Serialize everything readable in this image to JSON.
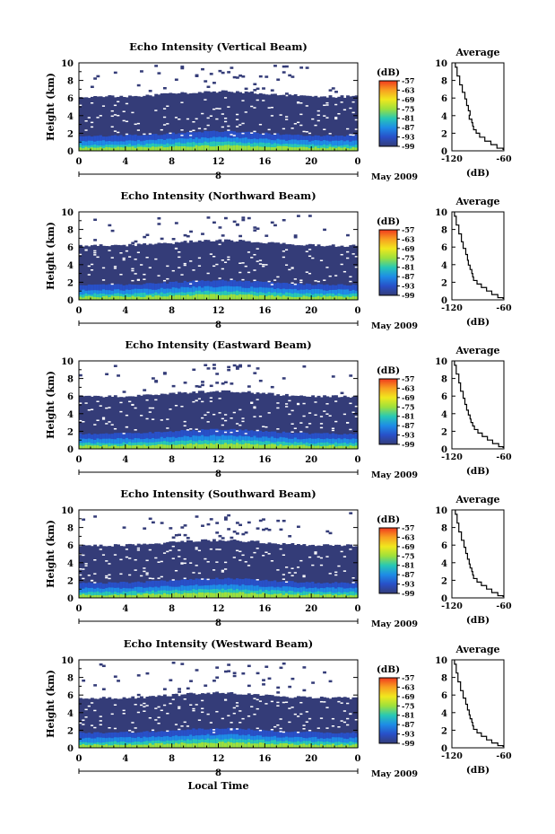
{
  "figure": {
    "x_title": "Local Time",
    "date_label": "May 2009",
    "colorbar_unit": "(dB)",
    "colorbar_ticks": [
      "-57",
      "-63",
      "-69",
      "-75",
      "-81",
      "-87",
      "-93",
      "-99"
    ],
    "profile_title": "Average",
    "profile_xlabel": "(dB)",
    "y_label": "Height (km)"
  },
  "chart_data": [
    {
      "type": "heatmap",
      "title": "Echo Intensity (Vertical Beam)",
      "xlabel": "",
      "ylabel": "Height (km)",
      "x_ticks": [
        "0",
        "4",
        "8",
        "12",
        "16",
        "20",
        "0"
      ],
      "day_label": "8",
      "date_label": "May 2009",
      "xlim": [
        0,
        24
      ],
      "ylim": [
        0,
        10
      ],
      "y_ticks": [
        "0",
        "2",
        "4",
        "6",
        "8",
        "10"
      ],
      "colorbar_unit": "(dB)",
      "colorbar_range": [
        -99,
        -57
      ],
      "colorbar_ticks": [
        -57,
        -63,
        -69,
        -75,
        -81,
        -87,
        -93,
        -99
      ],
      "colorbar_colors": [
        "#f03a1e",
        "#f8a020",
        "#f0e81e",
        "#9de03c",
        "#28c8b4",
        "#1e8ce6",
        "#2850c8",
        "#343c78"
      ],
      "echo_top_km": 6.3,
      "profile": {
        "title": "Average",
        "xlabel": "(dB)",
        "x_ticks": [
          "-120",
          "-60"
        ],
        "y_ticks": [
          "0",
          "2",
          "4",
          "6",
          "8",
          "10"
        ],
        "xlim": [
          -120,
          -60
        ],
        "ylim": [
          0,
          10
        ],
        "x": [
          -116,
          -114,
          -111,
          -108,
          -105,
          -103,
          -101,
          -99,
          -100,
          -97,
          -96,
          -95,
          -92,
          -88,
          -82,
          -75,
          -68,
          -61
        ],
        "y": [
          10,
          9,
          8,
          7,
          6.3,
          5.5,
          4.8,
          4.3,
          3.8,
          3.4,
          3.0,
          2.6,
          2.2,
          1.8,
          1.3,
          0.9,
          0.5,
          0.1
        ]
      }
    },
    {
      "type": "heatmap",
      "title": "Echo Intensity (Northward Beam)",
      "xlabel": "",
      "ylabel": "Height (km)",
      "x_ticks": [
        "0",
        "4",
        "8",
        "12",
        "16",
        "20",
        "0"
      ],
      "day_label": "8",
      "date_label": "May 2009",
      "xlim": [
        0,
        24
      ],
      "ylim": [
        0,
        10
      ],
      "y_ticks": [
        "0",
        "2",
        "4",
        "6",
        "8",
        "10"
      ],
      "colorbar_unit": "(dB)",
      "colorbar_range": [
        -99,
        -57
      ],
      "colorbar_ticks": [
        -57,
        -63,
        -69,
        -75,
        -81,
        -87,
        -93,
        -99
      ],
      "colorbar_colors": [
        "#f03a1e",
        "#f8a020",
        "#f0e81e",
        "#9de03c",
        "#28c8b4",
        "#1e8ce6",
        "#2850c8",
        "#343c78"
      ],
      "echo_top_km": 6.3,
      "profile": {
        "title": "Average",
        "xlabel": "(dB)",
        "x_ticks": [
          "-120",
          "-60"
        ],
        "y_ticks": [
          "0",
          "2",
          "4",
          "6",
          "8",
          "10"
        ],
        "xlim": [
          -120,
          -60
        ],
        "ylim": [
          0,
          10
        ],
        "x": [
          -117,
          -115,
          -112,
          -109,
          -107,
          -104,
          -102,
          -101,
          -99,
          -97,
          -96,
          -95,
          -91,
          -86,
          -80,
          -74,
          -67,
          -61
        ],
        "y": [
          10,
          9,
          8,
          7,
          6.2,
          5.5,
          4.8,
          4.2,
          3.7,
          3.2,
          2.8,
          2.4,
          2.0,
          1.6,
          1.2,
          0.8,
          0.4,
          0.1
        ]
      }
    },
    {
      "type": "heatmap",
      "title": "Echo Intensity (Eastward Beam)",
      "xlabel": "",
      "ylabel": "Height (km)",
      "x_ticks": [
        "0",
        "4",
        "8",
        "12",
        "16",
        "20",
        "0"
      ],
      "day_label": "8",
      "date_label": "May 2009",
      "xlim": [
        0,
        24
      ],
      "ylim": [
        0,
        10
      ],
      "y_ticks": [
        "0",
        "2",
        "4",
        "6",
        "8",
        "10"
      ],
      "colorbar_unit": "(dB)",
      "colorbar_range": [
        -99,
        -57
      ],
      "colorbar_ticks": [
        -57,
        -63,
        -69,
        -75,
        -81,
        -87,
        -93,
        -99
      ],
      "colorbar_colors": [
        "#f03a1e",
        "#f8a020",
        "#f0e81e",
        "#9de03c",
        "#28c8b4",
        "#1e8ce6",
        "#2850c8",
        "#343c78"
      ],
      "echo_top_km": 6.1,
      "profile": {
        "title": "Average",
        "xlabel": "(dB)",
        "x_ticks": [
          "-120",
          "-60"
        ],
        "y_ticks": [
          "0",
          "2",
          "4",
          "6",
          "8",
          "10"
        ],
        "xlim": [
          -120,
          -60
        ],
        "ylim": [
          0,
          10
        ],
        "x": [
          -117,
          -115,
          -112,
          -110,
          -107,
          -105,
          -103,
          -101,
          -99,
          -98,
          -96,
          -94,
          -90,
          -85,
          -79,
          -73,
          -66,
          -61
        ],
        "y": [
          10,
          9,
          8,
          7,
          6.1,
          5.4,
          4.7,
          4.1,
          3.6,
          3.2,
          2.8,
          2.4,
          2.0,
          1.6,
          1.2,
          0.8,
          0.4,
          0.1
        ]
      }
    },
    {
      "type": "heatmap",
      "title": "Echo Intensity (Southward Beam)",
      "xlabel": "",
      "ylabel": "Height (km)",
      "x_ticks": [
        "0",
        "4",
        "8",
        "12",
        "16",
        "20",
        "0"
      ],
      "day_label": "8",
      "date_label": "May 2009",
      "xlim": [
        0,
        24
      ],
      "ylim": [
        0,
        10
      ],
      "y_ticks": [
        "0",
        "2",
        "4",
        "6",
        "8",
        "10"
      ],
      "colorbar_unit": "(dB)",
      "colorbar_range": [
        -99,
        -57
      ],
      "colorbar_ticks": [
        -57,
        -63,
        -69,
        -75,
        -81,
        -87,
        -93,
        -99
      ],
      "colorbar_colors": [
        "#f03a1e",
        "#f8a020",
        "#f0e81e",
        "#9de03c",
        "#28c8b4",
        "#1e8ce6",
        "#2850c8",
        "#343c78"
      ],
      "echo_top_km": 6.1,
      "profile": {
        "title": "Average",
        "xlabel": "(dB)",
        "x_ticks": [
          "-120",
          "-60"
        ],
        "y_ticks": [
          "0",
          "2",
          "4",
          "6",
          "8",
          "10"
        ],
        "xlim": [
          -120,
          -60
        ],
        "ylim": [
          0,
          10
        ],
        "x": [
          -116,
          -114,
          -112,
          -109,
          -106,
          -104,
          -102,
          -100,
          -99,
          -97,
          -96,
          -95,
          -91,
          -86,
          -80,
          -74,
          -67,
          -61
        ],
        "y": [
          10,
          9,
          8,
          7,
          6.1,
          5.4,
          4.7,
          4.1,
          3.6,
          3.2,
          2.8,
          2.4,
          2.0,
          1.6,
          1.2,
          0.8,
          0.4,
          0.1
        ]
      }
    },
    {
      "type": "heatmap",
      "title": "Echo Intensity (Westward Beam)",
      "xlabel": "Local Time",
      "ylabel": "Height (km)",
      "x_ticks": [
        "0",
        "4",
        "8",
        "12",
        "16",
        "20",
        "0"
      ],
      "day_label": "8",
      "date_label": "May 2009",
      "xlim": [
        0,
        24
      ],
      "ylim": [
        0,
        10
      ],
      "y_ticks": [
        "0",
        "2",
        "4",
        "6",
        "8",
        "10"
      ],
      "colorbar_unit": "(dB)",
      "colorbar_range": [
        -99,
        -57
      ],
      "colorbar_ticks": [
        -57,
        -63,
        -69,
        -75,
        -81,
        -87,
        -93,
        -99
      ],
      "colorbar_colors": [
        "#f03a1e",
        "#f8a020",
        "#f0e81e",
        "#9de03c",
        "#28c8b4",
        "#1e8ce6",
        "#2850c8",
        "#343c78"
      ],
      "echo_top_km": 5.8,
      "profile": {
        "title": "Average",
        "xlabel": "(dB)",
        "x_ticks": [
          "-120",
          "-60"
        ],
        "y_ticks": [
          "0",
          "2",
          "4",
          "6",
          "8",
          "10"
        ],
        "xlim": [
          -120,
          -60
        ],
        "ylim": [
          0,
          10
        ],
        "x": [
          -117,
          -115,
          -113,
          -110,
          -107,
          -104,
          -102,
          -100,
          -99,
          -97,
          -96,
          -95,
          -91,
          -86,
          -80,
          -74,
          -67,
          -61
        ],
        "y": [
          10,
          9,
          8,
          7,
          6.0,
          5.3,
          4.6,
          4.0,
          3.5,
          3.1,
          2.7,
          2.3,
          1.9,
          1.5,
          1.1,
          0.7,
          0.4,
          0.1
        ]
      }
    }
  ]
}
